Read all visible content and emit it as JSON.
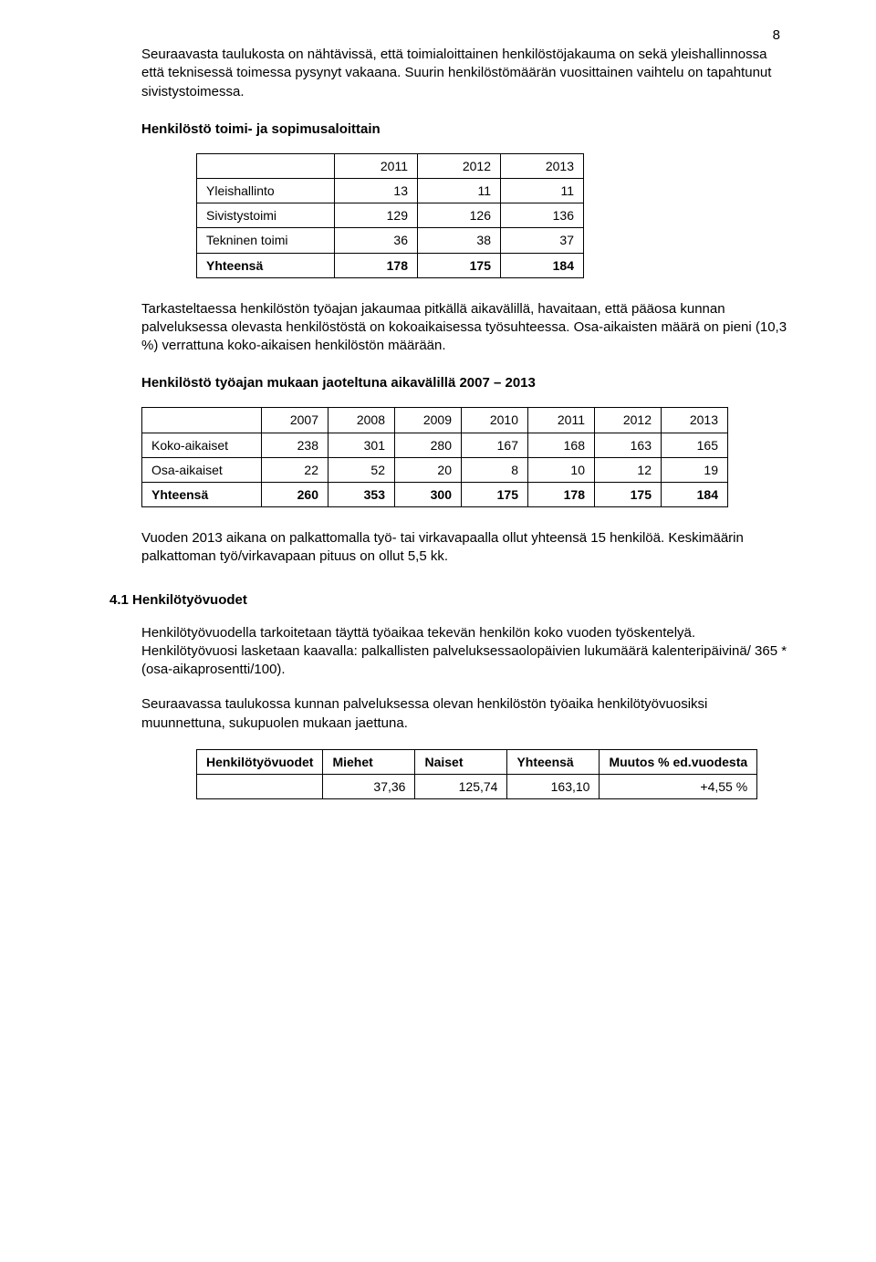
{
  "page": {
    "number": "8"
  },
  "para1": "Seuraavasta taulukosta on nähtävissä, että toimialoittainen henkilöstöjakauma on sekä yleishallinnossa että teknisessä toimessa pysynyt vakaana. Suurin henkilöstömäärän vuosittainen vaihtelu on tapahtunut sivistystoimessa.",
  "heading1": "Henkilöstö toimi- ja sopimusaloittain",
  "table1": {
    "columns": [
      "",
      "2011",
      "2012",
      "2013"
    ],
    "rows": [
      [
        "Yleishallinto",
        "13",
        "11",
        "11"
      ],
      [
        "Sivistystoimi",
        "129",
        "126",
        "136"
      ],
      [
        "Tekninen toimi",
        "36",
        "38",
        "37"
      ],
      [
        "Yhteensä",
        "178",
        "175",
        "184"
      ]
    ],
    "bold_last_row": true
  },
  "para2": "Tarkasteltaessa henkilöstön työajan jakaumaa pitkällä aikavälillä, havaitaan, että pääosa kunnan palveluksessa olevasta henkilöstöstä on kokoaikaisessa työsuhteessa. Osa-aikaisten määrä on pieni (10,3 %) verrattuna koko-aikaisen henkilöstön määrään.",
  "heading2": "Henkilöstö työajan mukaan jaoteltuna  aikavälillä 2007 – 2013",
  "table2": {
    "columns": [
      "",
      "2007",
      "2008",
      "2009",
      "2010",
      "2011",
      "2012",
      "2013"
    ],
    "rows": [
      [
        "Koko-aikaiset",
        "238",
        "301",
        "280",
        "167",
        "168",
        "163",
        "165"
      ],
      [
        "Osa-aikaiset",
        "22",
        "52",
        "20",
        "8",
        "10",
        "12",
        "19"
      ],
      [
        "Yhteensä",
        "260",
        "353",
        "300",
        "175",
        "178",
        "175",
        "184"
      ]
    ],
    "bold_last_row": true
  },
  "para3": "Vuoden 2013 aikana on palkattomalla työ- tai virkavapaalla ollut yhteensä 15 henkilöä. Keskimäärin palkattoman työ/virkavapaan pituus on ollut 5,5 kk.",
  "heading3": "4.1 Henkilötyövuodet",
  "para4": "Henkilötyövuodella tarkoitetaan täyttä työaikaa tekevän henkilön koko vuoden työskentelyä. Henkilötyövuosi lasketaan kaavalla: palkallisten palveluksessaolopäivien lukumäärä kalenteripäivinä/ 365 * (osa-aikaprosentti/100).",
  "para5": "Seuraavassa taulukossa kunnan palveluksessa olevan henkilöstön työaika henkilötyövuosiksi muunnettuna, sukupuolen mukaan jaettuna.",
  "table3": {
    "header": [
      "Henkilötyövuodet",
      "Miehet",
      "Naiset",
      "Yhteensä",
      "Muutos % ed.vuodesta"
    ],
    "rows": [
      [
        "",
        "37,36",
        "125,74",
        "163,10",
        "+4,55 %"
      ]
    ]
  }
}
